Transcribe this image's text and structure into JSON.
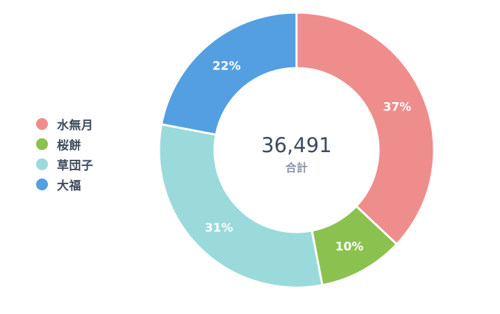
{
  "chart_data": {
    "type": "pie",
    "variant": "donut",
    "categories": [
      "水無月",
      "桜餅",
      "草団子",
      "大福"
    ],
    "values": [
      37,
      10,
      31,
      22
    ],
    "value_suffix": "%",
    "colors": [
      "#ef8d8c",
      "#8bc24f",
      "#9bdadb",
      "#539fe2"
    ],
    "center_value": "36,491",
    "center_label": "合計",
    "legend_position": "left"
  }
}
